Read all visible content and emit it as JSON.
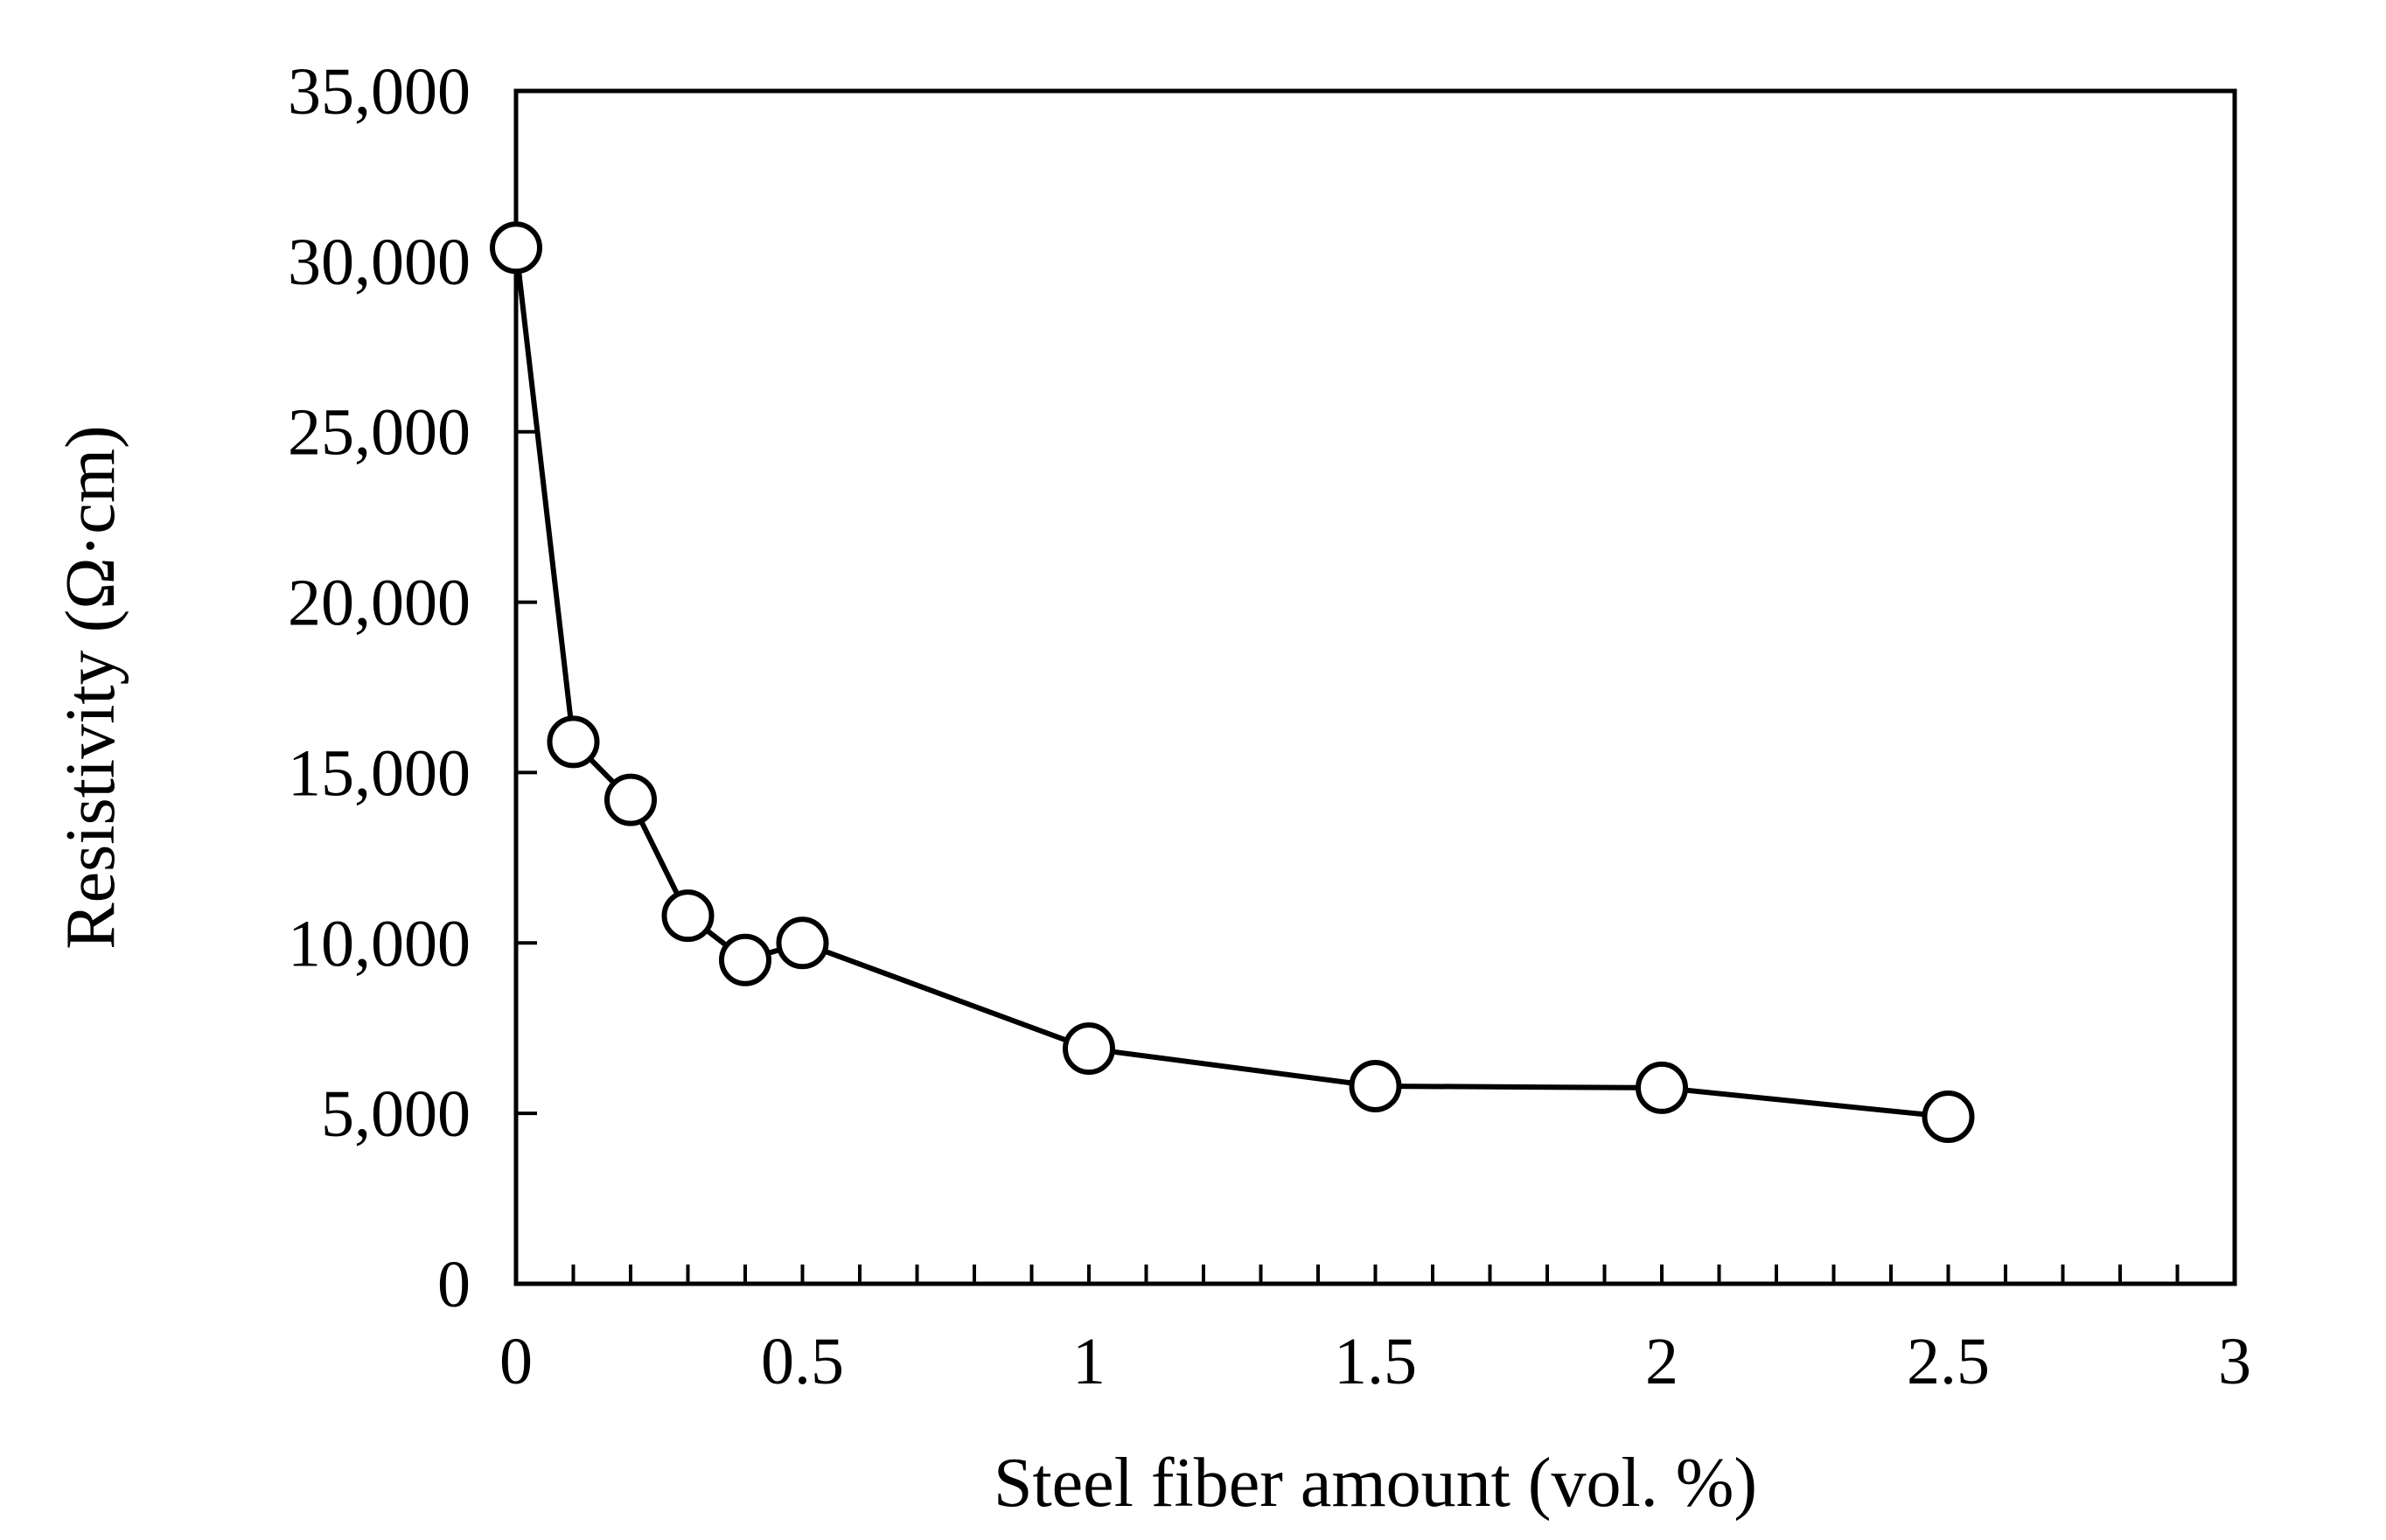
{
  "chart_data": {
    "type": "line",
    "title": "",
    "xlabel": "Steel fiber amount (vol. %)",
    "ylabel": "Resistivity (Ω·cm)",
    "xlim": [
      0,
      3
    ],
    "ylim": [
      0,
      35000
    ],
    "x_ticks": [
      0,
      0.5,
      1,
      1.5,
      2,
      2.5,
      3
    ],
    "x_tick_labels": [
      "0",
      "0.5",
      "1",
      "1.5",
      "2",
      "2.5",
      "3"
    ],
    "x_minor_step": 0.1,
    "y_ticks": [
      0,
      5000,
      10000,
      15000,
      20000,
      25000,
      30000,
      35000
    ],
    "y_tick_labels": [
      "0",
      "5,000",
      "10,000",
      "15,000",
      "20,000",
      "25,000",
      "30,000",
      "35,000"
    ],
    "grid": false,
    "legend": "none",
    "marker": "open-circle",
    "series": [
      {
        "name": "Resistivity",
        "x": [
          0,
          0.1,
          0.2,
          0.3,
          0.4,
          0.5,
          1.0,
          1.5,
          2.0,
          2.5
        ],
        "y": [
          30400,
          15900,
          14200,
          10800,
          9500,
          10000,
          6900,
          5800,
          5750,
          4900
        ]
      }
    ]
  }
}
